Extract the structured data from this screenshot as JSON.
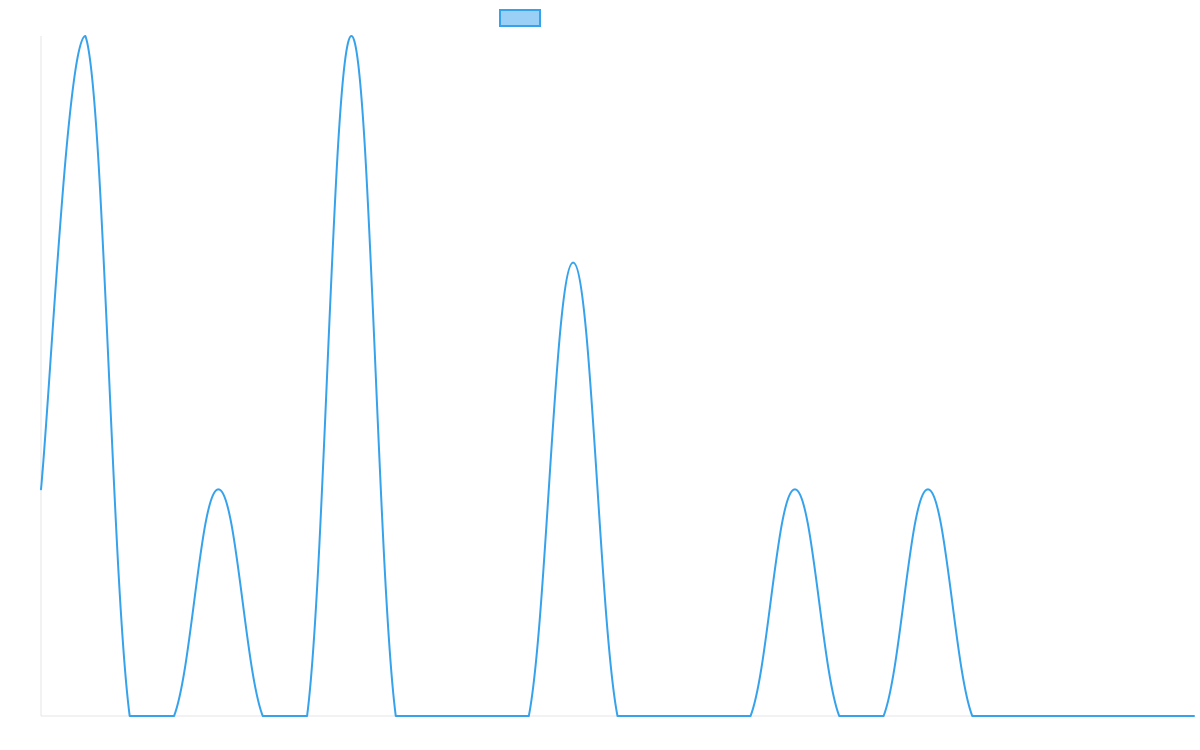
{
  "chart_data": {
    "type": "line",
    "title": "",
    "xlabel": "",
    "ylabel": "",
    "x": [
      0,
      1,
      2,
      3,
      4,
      5,
      6,
      7,
      8,
      9,
      10,
      11,
      12,
      13,
      14,
      15,
      16,
      17,
      18,
      19,
      20,
      21,
      22,
      23,
      24,
      25,
      26
    ],
    "series": [
      {
        "name": "",
        "values": [
          1,
          3,
          0,
          0,
          1,
          0,
          0,
          3,
          0,
          0,
          0,
          0,
          2,
          0,
          0,
          0,
          0,
          1,
          0,
          0,
          1,
          0,
          0,
          0,
          0,
          0,
          0
        ],
        "color": "#36A2EB",
        "fill": "rgba(54,162,235,0.5)",
        "curve": "smoothed"
      }
    ],
    "xlim": [
      0,
      26
    ],
    "ylim": [
      0,
      3
    ],
    "grid": false,
    "legend": "top"
  }
}
